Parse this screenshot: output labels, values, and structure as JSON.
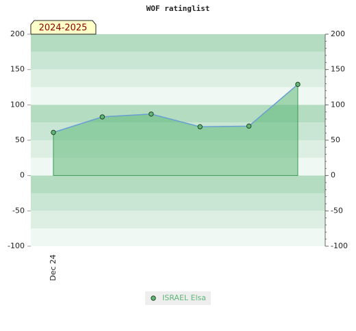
{
  "chart_data": {
    "type": "area",
    "title": "WOF ratinglist",
    "badge": "2024-2025",
    "categories": [
      "Dec 24",
      null,
      null,
      null,
      null,
      null
    ],
    "series": [
      {
        "name": "ISRAEL Elsa",
        "color": "#5fb878",
        "values": [
          61,
          83,
          87,
          69,
          70,
          129
        ]
      }
    ],
    "ylim": [
      -100,
      200
    ],
    "yticks": [
      -100,
      -50,
      0,
      50,
      100,
      150,
      200
    ],
    "y2lim": [
      -100,
      200
    ],
    "y2ticks": [
      -100,
      -50,
      0,
      50,
      100,
      150,
      200
    ]
  }
}
